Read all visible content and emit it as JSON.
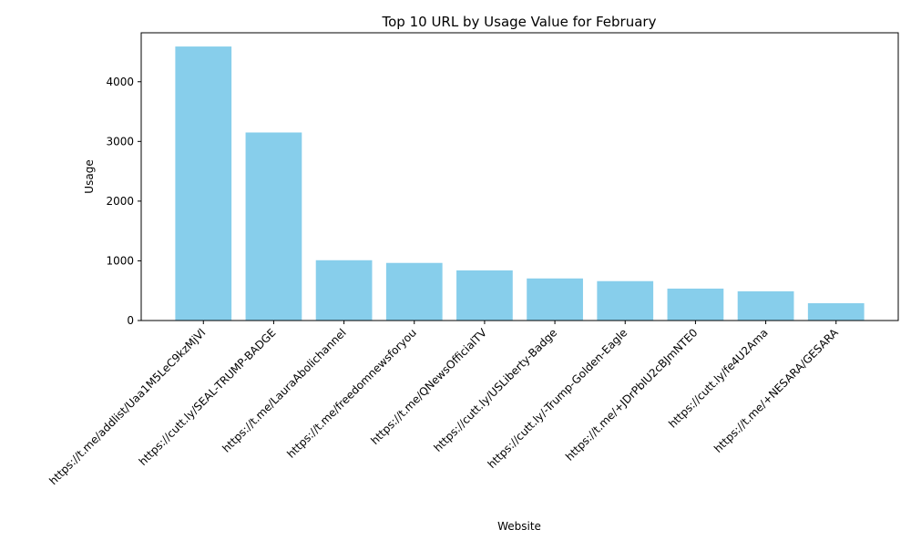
{
  "chart_data": {
    "type": "bar",
    "title": "Top 10 URL by Usage Value for February",
    "xlabel": "Website",
    "ylabel": "Usage",
    "categories": [
      "https://t.me/addlist/Uaa1M5LeC9kzMjVl",
      "https://cutt.ly/SEAL-TRUMP-BADGE",
      "https://t.me/LauraAbolichannel",
      "https://t.me/freedomnewsforyou",
      "https://t.me/QNewsOfficialTV",
      "https://cutt.ly/USLiberty-Badge",
      "https://cutt.ly/-Trump-Golden-Eagle",
      "https://t.me/+JDrPbIU2cBJmNTE0",
      "https://cutt.ly/fe4U2Ama",
      "https://t.me/+NESARA/GESARA"
    ],
    "values": [
      4590,
      3150,
      1010,
      965,
      840,
      705,
      660,
      535,
      490,
      290
    ],
    "yticks": [
      0,
      1000,
      2000,
      3000,
      4000
    ],
    "ylim": [
      0,
      4820
    ],
    "grid": false,
    "bar_color": "#87CEEB"
  }
}
